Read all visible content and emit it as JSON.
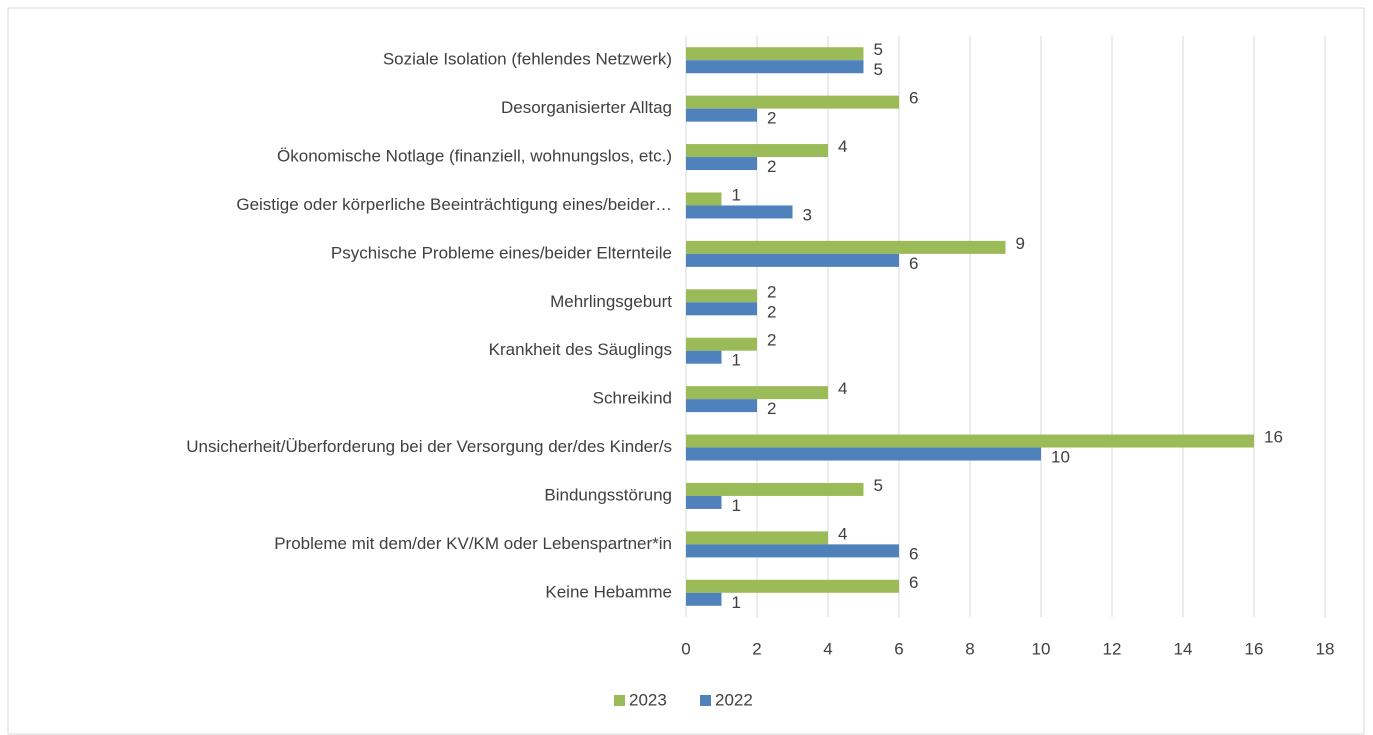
{
  "chart_data": {
    "type": "barh",
    "categories": [
      "Soziale Isolation (fehlendes Netzwerk)",
      "Desorganisierter Alltag",
      "Ökonomische Notlage (finanziell, wohnungslos, etc.)",
      "Geistige oder körperliche Beeinträchtigung eines/beider…",
      "Psychische Probleme eines/beider Elternteile",
      "Mehrlingsgeburt",
      "Krankheit des Säuglings",
      "Schreikind",
      "Unsicherheit/Überforderung bei der Versorgung der/des Kinder/s",
      "Bindungsstörung",
      "Probleme mit dem/der KV/KM oder Lebenspartner*in",
      "Keine Hebamme"
    ],
    "series": [
      {
        "name": "2023",
        "color": "#9bbb59",
        "values": [
          5,
          6,
          4,
          1,
          9,
          2,
          2,
          4,
          16,
          5,
          4,
          6
        ]
      },
      {
        "name": "2022",
        "color": "#4f81bd",
        "values": [
          5,
          2,
          2,
          3,
          6,
          2,
          1,
          2,
          10,
          1,
          6,
          1
        ]
      }
    ],
    "xlim": [
      0,
      18
    ],
    "xticks": [
      0,
      2,
      4,
      6,
      8,
      10,
      12,
      14,
      16,
      18
    ],
    "grid": true,
    "legend": "bottom"
  }
}
